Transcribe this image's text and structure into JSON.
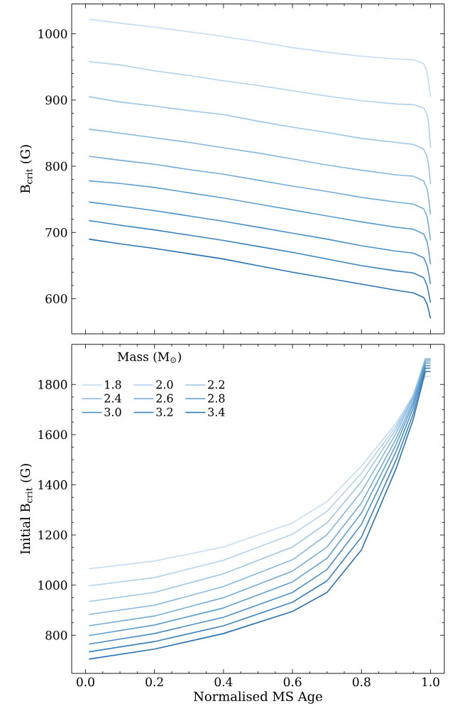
{
  "chart_data": [
    {
      "type": "line",
      "ylabel": "B$_{crit}$ (G)",
      "xlim": [
        -0.04,
        1.04
      ],
      "ylim": [
        547,
        1045
      ],
      "xticks": [
        0,
        0.2,
        0.4,
        0.6,
        0.8,
        1.0
      ],
      "yticks": [
        600,
        700,
        800,
        900,
        1000
      ],
      "tick_labels": "y",
      "line_style": "solid",
      "series": [
        {
          "color": "#c6dbef",
          "x": [
            0.01,
            0.1,
            0.2,
            0.3,
            0.4,
            0.5,
            0.6,
            0.7,
            0.8,
            0.9,
            0.95,
            0.98,
            0.99,
            0.995,
            1.0
          ],
          "values": [
            1022,
            1016,
            1010,
            1003,
            996,
            988,
            979,
            972,
            966,
            962,
            961,
            955,
            942,
            925,
            905
          ]
        },
        {
          "color": "#b3d1ea",
          "x": [
            0.01,
            0.1,
            0.2,
            0.3,
            0.4,
            0.5,
            0.6,
            0.7,
            0.8,
            0.9,
            0.95,
            0.98,
            0.99,
            0.995,
            1.0
          ],
          "values": [
            958,
            953,
            944,
            937,
            929,
            922,
            914,
            906,
            899,
            894,
            893,
            888,
            878,
            862,
            828
          ]
        },
        {
          "color": "#9ec6e4",
          "x": [
            0.01,
            0.1,
            0.2,
            0.3,
            0.4,
            0.5,
            0.6,
            0.7,
            0.8,
            0.9,
            0.95,
            0.98,
            0.99,
            0.995,
            1.0
          ],
          "values": [
            905,
            897,
            891,
            884,
            878,
            868,
            859,
            851,
            842,
            836,
            833,
            826,
            815,
            800,
            773
          ]
        },
        {
          "color": "#88b9dd",
          "x": [
            0.01,
            0.1,
            0.2,
            0.3,
            0.4,
            0.5,
            0.6,
            0.7,
            0.8,
            0.9,
            0.95,
            0.98,
            0.99,
            0.995,
            1.0
          ],
          "values": [
            856,
            850,
            843,
            836,
            828,
            820,
            811,
            802,
            794,
            787,
            785,
            778,
            766,
            750,
            727
          ]
        },
        {
          "color": "#74acd6",
          "x": [
            0.01,
            0.1,
            0.2,
            0.3,
            0.4,
            0.5,
            0.6,
            0.7,
            0.8,
            0.9,
            0.95,
            0.98,
            0.99,
            0.995,
            1.0
          ],
          "values": [
            815,
            809,
            803,
            795,
            788,
            779,
            770,
            762,
            753,
            746,
            743,
            736,
            724,
            708,
            688
          ]
        },
        {
          "color": "#5f9fcf",
          "x": [
            0.01,
            0.1,
            0.2,
            0.3,
            0.4,
            0.5,
            0.6,
            0.7,
            0.8,
            0.9,
            0.95,
            0.98,
            0.99,
            0.995,
            1.0
          ],
          "values": [
            778,
            774,
            768,
            760,
            752,
            743,
            734,
            725,
            716,
            708,
            705,
            698,
            686,
            672,
            652
          ]
        },
        {
          "color": "#4b91c8",
          "x": [
            0.01,
            0.1,
            0.2,
            0.3,
            0.4,
            0.5,
            0.6,
            0.7,
            0.8,
            0.9,
            0.95,
            0.98,
            0.99,
            0.995,
            1.0
          ],
          "values": [
            746,
            740,
            733,
            725,
            717,
            708,
            699,
            690,
            680,
            672,
            669,
            662,
            650,
            638,
            622
          ]
        },
        {
          "color": "#3a83bf",
          "x": [
            0.01,
            0.1,
            0.2,
            0.3,
            0.4,
            0.5,
            0.6,
            0.7,
            0.8,
            0.9,
            0.95,
            0.98,
            0.99,
            0.995,
            1.0
          ],
          "values": [
            718,
            711,
            704,
            696,
            688,
            679,
            670,
            660,
            650,
            642,
            639,
            632,
            620,
            608,
            594
          ]
        },
        {
          "color": "#2a73b5",
          "x": [
            0.01,
            0.1,
            0.2,
            0.3,
            0.4,
            0.5,
            0.6,
            0.7,
            0.8,
            0.9,
            0.95,
            0.98,
            0.99,
            0.995,
            1.0
          ],
          "values": [
            690,
            683,
            676,
            668,
            660,
            650,
            640,
            631,
            622,
            613,
            609,
            602,
            592,
            582,
            570
          ]
        }
      ]
    },
    {
      "type": "line",
      "xlabel": "Normalised MS Age",
      "ylabel": "Initial  B$_{crit}$ (G)",
      "legend_title": "Mass (M$_{⊙}$)",
      "legend": "top left",
      "xlim": [
        -0.04,
        1.04
      ],
      "ylim": [
        648,
        1960
      ],
      "xticks": [
        {
          "value": 0,
          "label": "0.0"
        },
        {
          "value": 0.2,
          "label": "0.2"
        },
        {
          "value": 0.4,
          "label": "0.4"
        },
        {
          "value": 0.6,
          "label": "0.6"
        },
        {
          "value": 0.8,
          "label": "0.8"
        },
        {
          "value": 1.0,
          "label": "1.0"
        }
      ],
      "yticks": [
        800,
        1000,
        1200,
        1400,
        1600,
        1800
      ],
      "line_style": "solid",
      "series": [
        {
          "name": "1.8",
          "color": "#c6dbef",
          "x": [
            0.01,
            0.2,
            0.4,
            0.6,
            0.7,
            0.8,
            0.9,
            0.95,
            0.985,
            1.0
          ],
          "values": [
            1065,
            1096,
            1152,
            1248,
            1333,
            1475,
            1645,
            1758,
            1832,
            1832
          ]
        },
        {
          "name": "2.0",
          "color": "#b3d1ea",
          "x": [
            0.01,
            0.2,
            0.4,
            0.6,
            0.7,
            0.8,
            0.9,
            0.95,
            0.985,
            1.0
          ],
          "values": [
            997,
            1030,
            1099,
            1203,
            1294,
            1447,
            1634,
            1758,
            1897,
            1897
          ]
        },
        {
          "name": "2.2",
          "color": "#9ec6e4",
          "x": [
            0.01,
            0.2,
            0.4,
            0.6,
            0.7,
            0.8,
            0.9,
            0.95,
            0.985,
            1.0
          ],
          "values": [
            935,
            971,
            1045,
            1152,
            1248,
            1413,
            1622,
            1752,
            1903,
            1903
          ]
        },
        {
          "name": "2.4",
          "color": "#88b9dd",
          "x": [
            0.01,
            0.2,
            0.4,
            0.6,
            0.7,
            0.8,
            0.9,
            0.95,
            0.985,
            1.0
          ],
          "values": [
            883,
            920,
            994,
            1101,
            1201,
            1373,
            1605,
            1747,
            1900,
            1900
          ]
        },
        {
          "name": "2.6",
          "color": "#74acd6",
          "x": [
            0.01,
            0.2,
            0.4,
            0.6,
            0.7,
            0.8,
            0.9,
            0.95,
            0.985,
            1.0
          ],
          "values": [
            838,
            877,
            950,
            1056,
            1152,
            1328,
            1583,
            1735,
            1893,
            1893
          ]
        },
        {
          "name": "2.8",
          "color": "#5f9fcf",
          "x": [
            0.01,
            0.2,
            0.4,
            0.6,
            0.7,
            0.8,
            0.9,
            0.95,
            0.985,
            1.0
          ],
          "values": [
            799,
            841,
            909,
            1013,
            1107,
            1288,
            1560,
            1724,
            1885,
            1885
          ]
        },
        {
          "name": "3.0",
          "color": "#4b91c8",
          "x": [
            0.01,
            0.2,
            0.4,
            0.6,
            0.7,
            0.8,
            0.9,
            0.95,
            0.985,
            1.0
          ],
          "values": [
            765,
            807,
            872,
            971,
            1062,
            1243,
            1532,
            1707,
            1875,
            1875
          ]
        },
        {
          "name": "3.2",
          "color": "#3a83bf",
          "x": [
            0.01,
            0.2,
            0.4,
            0.6,
            0.7,
            0.8,
            0.9,
            0.95,
            0.985,
            1.0
          ],
          "values": [
            734,
            775,
            838,
            932,
            1017,
            1192,
            1498,
            1684,
            1865,
            1865
          ]
        },
        {
          "name": "3.4",
          "color": "#2a73b5",
          "x": [
            0.01,
            0.2,
            0.4,
            0.6,
            0.7,
            0.8,
            0.9,
            0.95,
            0.985,
            1.0
          ],
          "values": [
            705,
            745,
            807,
            895,
            971,
            1141,
            1464,
            1661,
            1852,
            1852
          ]
        }
      ]
    }
  ]
}
